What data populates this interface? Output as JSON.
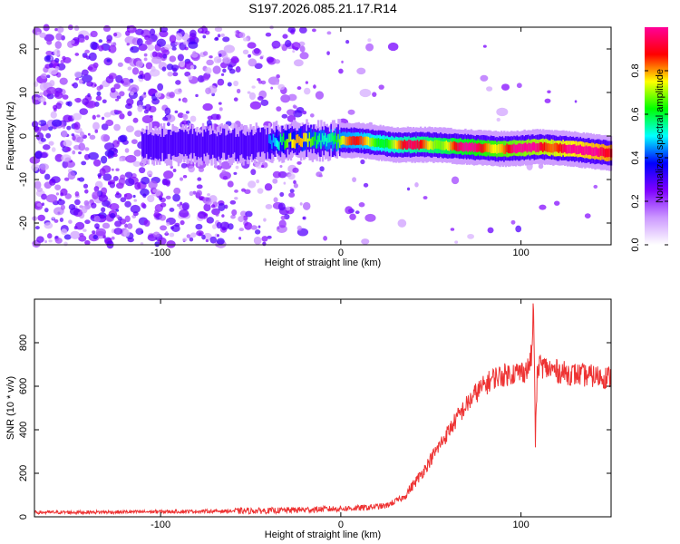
{
  "title": "S197.2026.085.21.17.R14",
  "chart_data": [
    {
      "type": "heatmap",
      "xlabel": "Height of straight line (km)",
      "ylabel": "Frequency (Hz)",
      "xlim": [
        -170,
        150
      ],
      "ylim": [
        -25,
        25
      ],
      "xticks": [
        -100,
        0,
        100
      ],
      "yticks": [
        -20,
        -10,
        0,
        10,
        20
      ],
      "colorbar": {
        "label": "Normalized spectral amplitude",
        "range": [
          0,
          1
        ],
        "ticks": [
          0.0,
          0.2,
          0.4,
          0.6,
          0.8
        ],
        "colors": [
          "#ffffff",
          "#cc99ff",
          "#7f00ff",
          "#0000ff",
          "#00ffff",
          "#00ff00",
          "#ffff00",
          "#ff0000",
          "#ff0099"
        ]
      },
      "ridge": [
        {
          "x": -100,
          "y": -2
        },
        {
          "x": -50,
          "y": -2
        },
        {
          "x": -25,
          "y": -1
        },
        {
          "x": 0,
          "y": -1
        },
        {
          "x": 10,
          "y": -1
        },
        {
          "x": 30,
          "y": -2
        },
        {
          "x": 50,
          "y": -2
        },
        {
          "x": 70,
          "y": -2.5
        },
        {
          "x": 90,
          "y": -3
        },
        {
          "x": 110,
          "y": -2.5
        },
        {
          "x": 130,
          "y": -3
        },
        {
          "x": 150,
          "y": -4
        }
      ]
    },
    {
      "type": "line",
      "xlabel": "Height of straight line (km)",
      "ylabel": "SNR (10 * v/v)",
      "xlim": [
        -170,
        150
      ],
      "ylim": [
        0,
        1000
      ],
      "xticks": [
        -100,
        0,
        100
      ],
      "yticks": [
        0,
        200,
        400,
        600,
        800
      ],
      "color": "#ee3333",
      "series": [
        {
          "x": [
            -170,
            -120,
            -80,
            -40,
            -10,
            10,
            25,
            35,
            45,
            55,
            65,
            75,
            85,
            95,
            100,
            104,
            106,
            107,
            108,
            109,
            110,
            115,
            125,
            135,
            150
          ],
          "y": [
            20,
            22,
            25,
            28,
            35,
            40,
            50,
            90,
            200,
            330,
            460,
            570,
            640,
            660,
            665,
            680,
            750,
            980,
            350,
            640,
            700,
            680,
            660,
            650,
            640
          ]
        }
      ]
    }
  ]
}
